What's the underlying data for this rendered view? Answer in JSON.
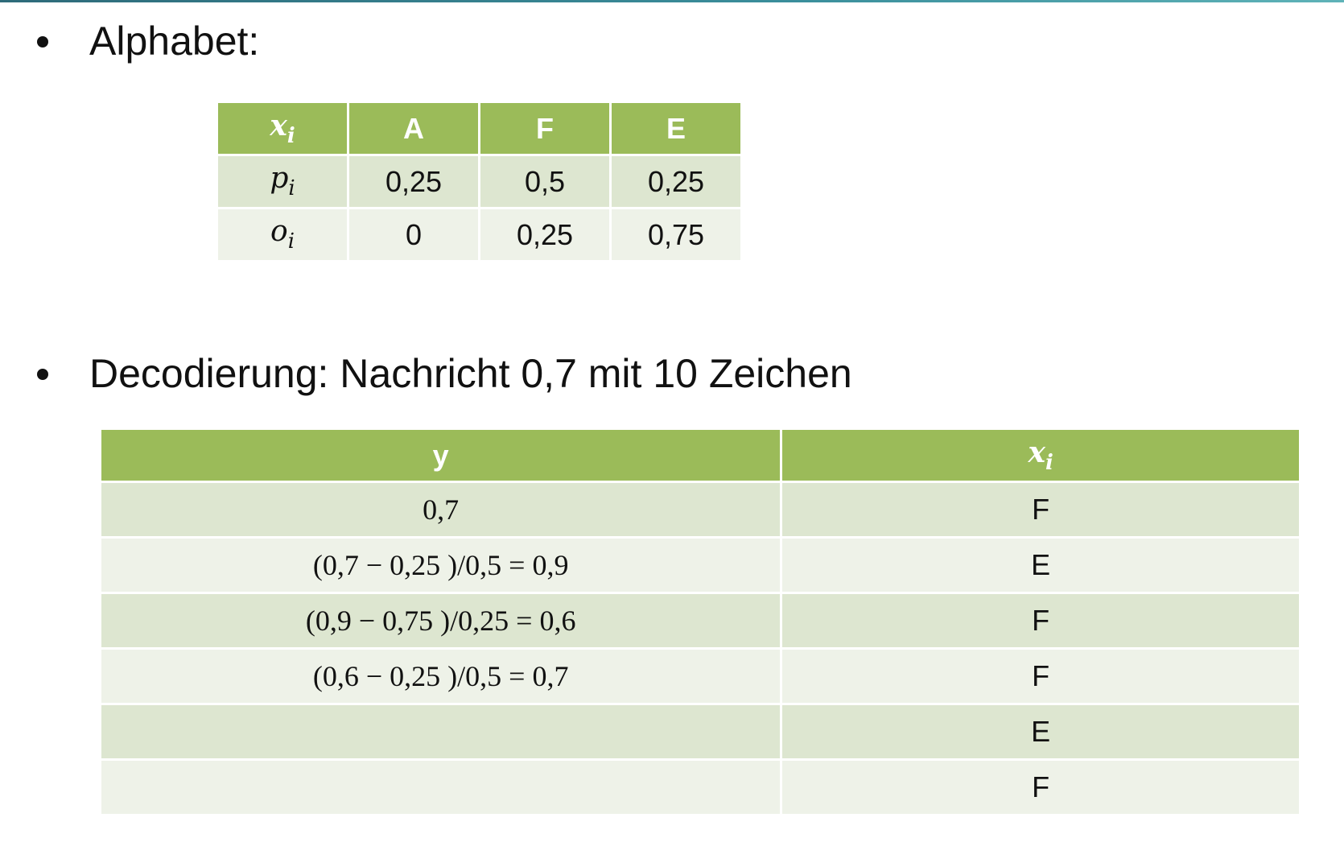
{
  "bullets": {
    "alphabet": "Alphabet:",
    "decoding": "Decodierung: Nachricht 0,7 mit 10 Zeichen"
  },
  "alphabet_table": {
    "header": {
      "label_var": "x",
      "label_sub": "i",
      "symbols": [
        "A",
        "F",
        "E"
      ]
    },
    "rows": [
      {
        "var": "p",
        "sub": "i",
        "values": [
          "0,25",
          "0,5",
          "0,25"
        ]
      },
      {
        "var": "o",
        "sub": "i",
        "values": [
          "0",
          "0,25",
          "0,75"
        ]
      }
    ]
  },
  "decoding_table": {
    "header": {
      "y": "y",
      "x_var": "x",
      "x_sub": "i"
    },
    "rows": [
      {
        "y": "0,7",
        "x": "F"
      },
      {
        "y": "(0,7 − 0,25 )/0,5 = 0,9",
        "x": "E"
      },
      {
        "y": "(0,9 − 0,75 )/0,25 = 0,6",
        "x": "F"
      },
      {
        "y": "(0,6 − 0,25 )/0,5 = 0,7",
        "x": "F"
      },
      {
        "y": "",
        "x": "E"
      },
      {
        "y": "",
        "x": "F"
      }
    ]
  },
  "colors": {
    "header_bg": "#9bbb59",
    "row_dark": "#dde6d0",
    "row_light": "#eef2e8"
  }
}
